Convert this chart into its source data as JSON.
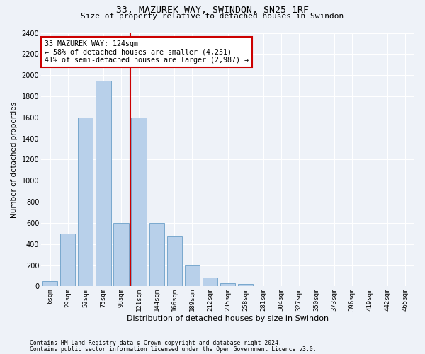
{
  "title1": "33, MAZUREK WAY, SWINDON, SN25 1RF",
  "title2": "Size of property relative to detached houses in Swindon",
  "xlabel": "Distribution of detached houses by size in Swindon",
  "ylabel": "Number of detached properties",
  "footnote1": "Contains HM Land Registry data © Crown copyright and database right 2024.",
  "footnote2": "Contains public sector information licensed under the Open Government Licence v3.0.",
  "categories": [
    "6sqm",
    "29sqm",
    "52sqm",
    "75sqm",
    "98sqm",
    "121sqm",
    "144sqm",
    "166sqm",
    "189sqm",
    "212sqm",
    "235sqm",
    "258sqm",
    "281sqm",
    "304sqm",
    "327sqm",
    "350sqm",
    "373sqm",
    "396sqm",
    "419sqm",
    "442sqm",
    "465sqm"
  ],
  "values": [
    50,
    500,
    1600,
    1950,
    600,
    1600,
    600,
    475,
    200,
    80,
    30,
    20,
    5,
    5,
    5,
    0,
    0,
    0,
    0,
    0,
    0
  ],
  "bar_color": "#b8d0ea",
  "bar_edge_color": "#6a9fc8",
  "annotation_text": "33 MAZUREK WAY: 124sqm\n← 58% of detached houses are smaller (4,251)\n41% of semi-detached houses are larger (2,987) →",
  "annotation_box_color": "white",
  "annotation_box_edge_color": "#cc0000",
  "ylim": [
    0,
    2400
  ],
  "yticks": [
    0,
    200,
    400,
    600,
    800,
    1000,
    1200,
    1400,
    1600,
    1800,
    2000,
    2200,
    2400
  ],
  "vline_color": "#cc0000",
  "vline_x": 5.0,
  "background_color": "#eef2f8",
  "grid_color": "white"
}
